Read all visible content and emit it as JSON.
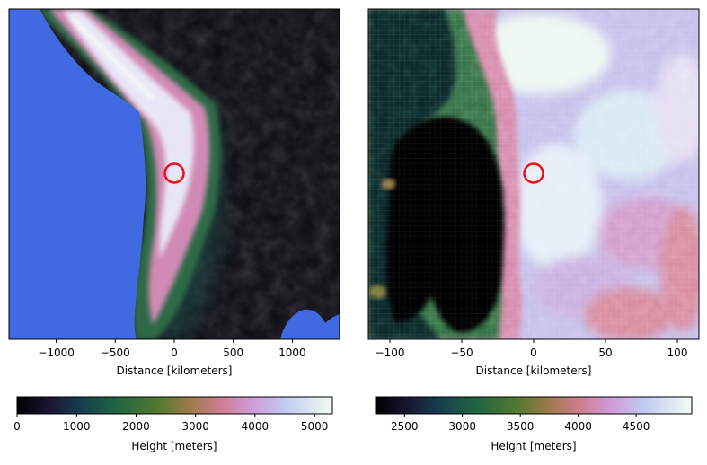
{
  "chart_data": [
    {
      "type": "heatmap",
      "subject": "elevation map, wide view",
      "xlabel": "Distance [kilometers]",
      "xlim": [
        -1400,
        1400
      ],
      "xticks": [
        -1000,
        -500,
        0,
        500,
        1000
      ],
      "xtick_labels": [
        "−1000",
        "−500",
        "0",
        "500",
        "1000"
      ],
      "marker": {
        "shape": "circle",
        "x": 0,
        "color": "#ee1111"
      },
      "colormap": "cubehelix",
      "ocean_color": "#4169e1",
      "colorbar": {
        "label": "Height [meters]",
        "range": [
          0,
          5300
        ],
        "ticks": [
          0,
          1000,
          2000,
          3000,
          4000,
          5000
        ],
        "tick_labels": [
          "0",
          "1000",
          "2000",
          "3000",
          "4000",
          "5000"
        ]
      }
    },
    {
      "type": "heatmap",
      "subject": "elevation map, zoomed view",
      "xlabel": "Distance [kilometers]",
      "xlim": [
        -115,
        115
      ],
      "xticks": [
        -100,
        -50,
        0,
        50,
        100
      ],
      "xtick_labels": [
        "−100",
        "−50",
        "0",
        "50",
        "100"
      ],
      "marker": {
        "shape": "circle",
        "x": 0,
        "color": "#ee1111"
      },
      "colormap": "cubehelix",
      "colorbar": {
        "label": "Height [meters]",
        "range": [
          2250,
          4980
        ],
        "ticks": [
          2500,
          3000,
          3500,
          4000,
          4500
        ],
        "tick_labels": [
          "2500",
          "3000",
          "3500",
          "4000",
          "4500"
        ]
      }
    }
  ]
}
